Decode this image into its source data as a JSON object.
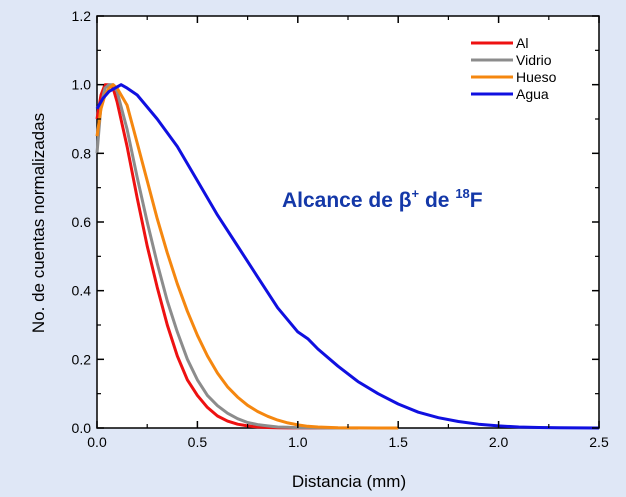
{
  "chart_data": {
    "type": "line",
    "title": "",
    "xlabel": "Distancia (mm)",
    "ylabel": "No. de cuentas normalizadas",
    "xlim": [
      0,
      2.5
    ],
    "ylim": [
      0,
      1.2
    ],
    "xticks": [
      "0.0",
      "0.5",
      "1.0",
      "1.5",
      "2.0",
      "2.5"
    ],
    "yticks": [
      "0.0",
      "0.2",
      "0.4",
      "0.6",
      "0.8",
      "1.0",
      "1.2"
    ],
    "grid": false,
    "legend_position": "top-right",
    "annotation": {
      "base": "Alcance de β",
      "sup1": "+",
      "mid": " de ",
      "sup2": "18",
      "tail": "F",
      "color": "#1438a8"
    },
    "series": [
      {
        "name": "Al",
        "color": "#ee1111",
        "x": [
          0,
          0.02,
          0.04,
          0.06,
          0.08,
          0.1,
          0.15,
          0.2,
          0.25,
          0.3,
          0.35,
          0.4,
          0.45,
          0.5,
          0.55,
          0.6,
          0.65,
          0.7,
          0.75,
          0.8,
          0.85,
          0.9,
          0.95,
          1.0,
          1.1,
          1.2
        ],
        "y": [
          0.9,
          0.97,
          1.0,
          1.0,
          0.99,
          0.95,
          0.82,
          0.67,
          0.53,
          0.41,
          0.3,
          0.21,
          0.14,
          0.095,
          0.06,
          0.035,
          0.02,
          0.011,
          0.006,
          0.003,
          0.0015,
          0.0008,
          0.0004,
          0.0002,
          0,
          0
        ]
      },
      {
        "name": "Vidrio",
        "color": "#8c8c8c",
        "x": [
          0,
          0.02,
          0.04,
          0.06,
          0.08,
          0.1,
          0.15,
          0.2,
          0.25,
          0.3,
          0.35,
          0.4,
          0.45,
          0.5,
          0.55,
          0.6,
          0.65,
          0.7,
          0.75,
          0.8,
          0.85,
          0.9,
          0.95,
          1.0,
          1.05,
          1.1,
          1.2,
          1.3
        ],
        "y": [
          0.8,
          0.94,
          0.99,
          1.0,
          1.0,
          0.98,
          0.87,
          0.73,
          0.6,
          0.48,
          0.37,
          0.28,
          0.2,
          0.14,
          0.095,
          0.065,
          0.043,
          0.027,
          0.016,
          0.01,
          0.006,
          0.003,
          0.002,
          0.001,
          0.0005,
          0.0002,
          0,
          0
        ]
      },
      {
        "name": "Hueso",
        "color": "#f5870f",
        "x": [
          0,
          0.02,
          0.04,
          0.06,
          0.08,
          0.1,
          0.15,
          0.2,
          0.25,
          0.3,
          0.35,
          0.4,
          0.45,
          0.5,
          0.55,
          0.6,
          0.65,
          0.7,
          0.75,
          0.8,
          0.85,
          0.9,
          0.95,
          1.0,
          1.05,
          1.1,
          1.2,
          1.3,
          1.4,
          1.5
        ],
        "y": [
          0.85,
          0.93,
          0.97,
          0.99,
          1.0,
          0.99,
          0.94,
          0.83,
          0.72,
          0.61,
          0.51,
          0.42,
          0.34,
          0.27,
          0.21,
          0.16,
          0.12,
          0.09,
          0.066,
          0.048,
          0.034,
          0.023,
          0.015,
          0.009,
          0.005,
          0.003,
          0.001,
          0.0003,
          0,
          0
        ]
      },
      {
        "name": "Agua",
        "color": "#1010e0",
        "x": [
          0,
          0.03,
          0.06,
          0.09,
          0.12,
          0.15,
          0.2,
          0.3,
          0.4,
          0.5,
          0.6,
          0.7,
          0.8,
          0.9,
          1.0,
          1.05,
          1.1,
          1.2,
          1.3,
          1.4,
          1.5,
          1.6,
          1.7,
          1.8,
          1.9,
          2.0,
          2.1,
          2.2,
          2.3,
          2.4,
          2.5
        ],
        "y": [
          0.93,
          0.96,
          0.98,
          0.99,
          1.0,
          0.99,
          0.97,
          0.9,
          0.82,
          0.72,
          0.62,
          0.53,
          0.44,
          0.35,
          0.28,
          0.26,
          0.23,
          0.18,
          0.135,
          0.1,
          0.07,
          0.046,
          0.03,
          0.019,
          0.011,
          0.006,
          0.003,
          0.0015,
          0.0007,
          0.0002,
          0
        ]
      }
    ]
  }
}
